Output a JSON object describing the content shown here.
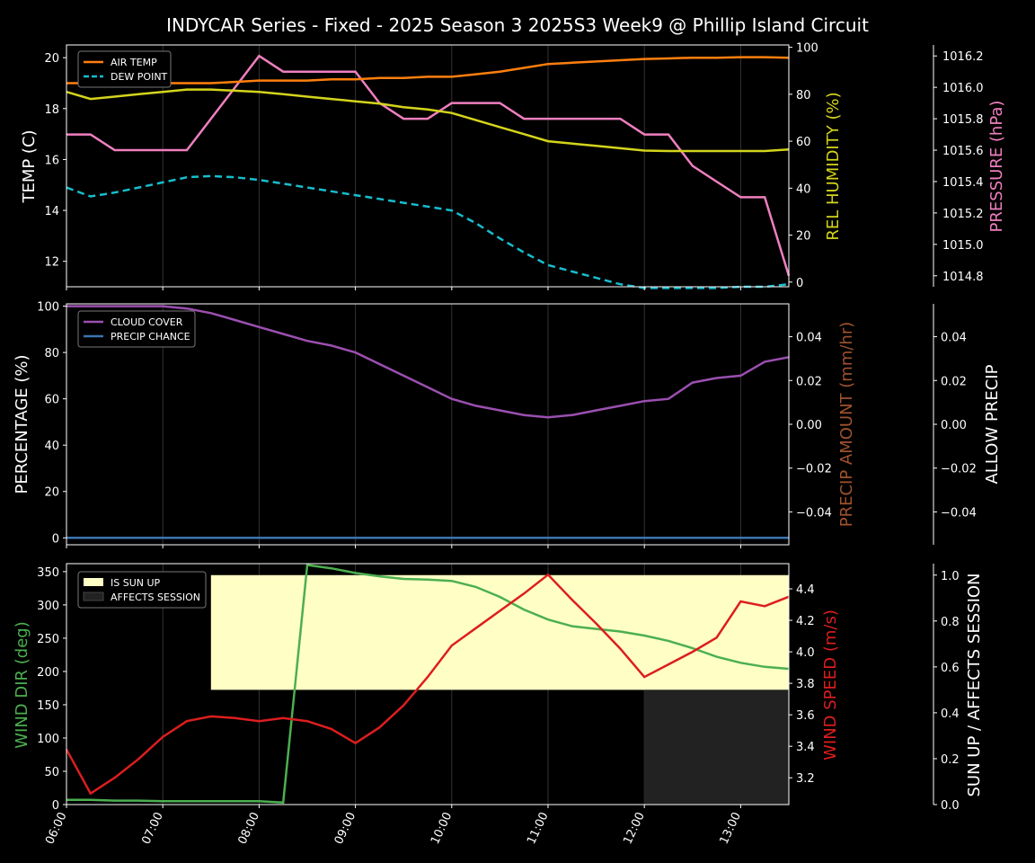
{
  "title": "INDYCAR Series - Fixed - 2025 Season 3 2025S3 Week9 @ Phillip Island Circuit",
  "x_tick_labels": [
    "06:00",
    "07:00",
    "08:00",
    "09:00",
    "10:00",
    "11:00",
    "12:00",
    "13:00"
  ],
  "colors": {
    "air_temp": "#ff7f0e",
    "dew_point": "#17becf",
    "rel_humidity": "#d4d41c",
    "pressure": "#ef7fbf",
    "cloud_cover": "#9b4fb0",
    "precip_chance": "#3a75b0",
    "precip_amount": "#a0522d",
    "wind_dir": "#4caf50",
    "wind_speed": "#dc1e1e",
    "sun_up": "#ffffc5",
    "affects_session": "#222222"
  },
  "chart_data": [
    {
      "type": "line",
      "ylabel": "TEMP (C)",
      "ylabel2": "REL HUMIDITY (%)",
      "ylabel3": "PRESSURE (hPa)",
      "ylim": [
        11.0,
        20.5
      ],
      "ylim2": [
        -2,
        101
      ],
      "ylim3": [
        1014.73,
        1016.27
      ],
      "yticks": [
        12,
        14,
        16,
        18,
        20
      ],
      "yticks2": [
        0,
        20,
        40,
        60,
        80,
        100
      ],
      "yticks3": [
        "1014.8",
        "1015.0",
        "1015.2",
        "1015.4",
        "1015.6",
        "1015.8",
        "1016.0",
        "1016.2"
      ],
      "legend": [
        "AIR TEMP",
        "DEW POINT"
      ],
      "legend_position": "top-left",
      "series": [
        {
          "name": "AIR TEMP",
          "axis": "left",
          "x": [
            6,
            6.25,
            6.5,
            6.75,
            7,
            7.25,
            7.5,
            7.75,
            8,
            8.25,
            8.5,
            8.75,
            9,
            9.25,
            9.5,
            9.75,
            10,
            10.25,
            10.5,
            10.75,
            11,
            11.25,
            11.5,
            11.75,
            12,
            12.25,
            12.5,
            12.75,
            13,
            13.25,
            13.5
          ],
          "values": [
            19.0,
            19.0,
            19.0,
            19.0,
            19.0,
            19.0,
            19.0,
            19.05,
            19.1,
            19.1,
            19.1,
            19.15,
            19.15,
            19.2,
            19.2,
            19.25,
            19.25,
            19.35,
            19.45,
            19.6,
            19.75,
            19.8,
            19.85,
            19.9,
            19.95,
            19.97,
            20.0,
            20.0,
            20.02,
            20.02,
            20.0
          ]
        },
        {
          "name": "DEW POINT",
          "axis": "left",
          "x": [
            6,
            6.25,
            6.5,
            6.75,
            7,
            7.25,
            7.5,
            7.75,
            8,
            8.25,
            8.5,
            8.75,
            9,
            9.25,
            9.5,
            9.75,
            10,
            10.25,
            10.5,
            10.75,
            11,
            11.25,
            11.5,
            11.75,
            12,
            12.25,
            12.5,
            12.75,
            13,
            13.25,
            13.5
          ],
          "values": [
            14.9,
            14.55,
            14.7,
            14.9,
            15.1,
            15.3,
            15.35,
            15.3,
            15.2,
            15.05,
            14.9,
            14.75,
            14.6,
            14.45,
            14.3,
            14.15,
            14.0,
            13.5,
            12.9,
            12.35,
            11.85,
            11.6,
            11.35,
            11.1,
            10.95,
            10.95,
            10.95,
            10.95,
            11.0,
            11.0,
            11.1
          ]
        },
        {
          "name": "",
          "axis": "right",
          "x": [
            6,
            6.25,
            6.5,
            6.75,
            7,
            7.25,
            7.5,
            7.75,
            8,
            8.25,
            8.5,
            8.75,
            9,
            9.25,
            9.5,
            9.75,
            10,
            10.25,
            10.5,
            10.75,
            11,
            11.25,
            11.5,
            11.75,
            12,
            12.25,
            12.5,
            12.75,
            13,
            13.25,
            13.5
          ],
          "values": [
            81,
            78,
            79,
            80,
            81,
            82,
            82,
            81.5,
            81,
            80,
            79,
            78,
            77,
            76,
            74.5,
            73.5,
            72,
            69,
            66,
            63,
            60,
            59,
            58,
            57,
            56,
            55.8,
            55.8,
            55.8,
            55.8,
            55.8,
            56.5
          ]
        },
        {
          "name": "",
          "axis": "right2",
          "x": [
            6,
            6.25,
            6.5,
            6.75,
            7,
            7.25,
            7.5,
            7.75,
            8,
            8.25,
            8.5,
            8.75,
            9,
            9.25,
            9.5,
            9.75,
            10,
            10.25,
            10.5,
            10.75,
            11,
            11.25,
            11.5,
            11.75,
            12,
            12.25,
            12.5,
            12.75,
            13,
            13.25,
            13.5
          ],
          "values": [
            1015.7,
            1015.7,
            1015.6,
            1015.6,
            1015.6,
            1015.6,
            1015.8,
            1016.0,
            1016.2,
            1016.1,
            1016.1,
            1016.1,
            1016.1,
            1015.9,
            1015.8,
            1015.8,
            1015.9,
            1015.9,
            1015.9,
            1015.8,
            1015.8,
            1015.8,
            1015.8,
            1015.8,
            1015.7,
            1015.7,
            1015.5,
            1015.4,
            1015.3,
            1015.3,
            1014.8
          ]
        }
      ]
    },
    {
      "type": "line",
      "ylabel": "PERCENTAGE (%)",
      "ylabel2": "PRECIP AMOUNT (mm/hr)",
      "ylabel3": "ALLOW PRECIP",
      "ylim": [
        -3,
        101
      ],
      "ylim2": [
        -0.055,
        0.055
      ],
      "yticks": [
        0,
        20,
        40,
        60,
        80,
        100
      ],
      "yticks2": [
        "−0.04",
        "−0.02",
        "0.00",
        "0.02",
        "0.04"
      ],
      "legend": [
        "CLOUD COVER",
        "PRECIP CHANCE"
      ],
      "legend_position": "top-left",
      "series": [
        {
          "name": "CLOUD COVER",
          "axis": "left",
          "x": [
            6,
            6.25,
            6.5,
            6.75,
            7,
            7.25,
            7.5,
            7.75,
            8,
            8.25,
            8.5,
            8.75,
            9,
            9.25,
            9.5,
            9.75,
            10,
            10.25,
            10.5,
            10.75,
            11,
            11.25,
            11.5,
            11.75,
            12,
            12.25,
            12.5,
            12.75,
            13,
            13.25,
            13.5
          ],
          "values": [
            100,
            100,
            100,
            100,
            100,
            99,
            97,
            94,
            91,
            88,
            85,
            83,
            80,
            75,
            70,
            65,
            60,
            57,
            55,
            53,
            52,
            53,
            55,
            57,
            59,
            60,
            67,
            69,
            70,
            76,
            78
          ]
        },
        {
          "name": "PRECIP CHANCE",
          "axis": "left",
          "x": [
            6,
            13.5
          ],
          "values": [
            0,
            0
          ]
        }
      ]
    },
    {
      "type": "line",
      "ylabel": "WIND DIR (deg)",
      "ylabel2": "WIND SPEED (m/s)",
      "ylabel3": "SUN UP / AFFECTS SESSION",
      "ylim": [
        0,
        362
      ],
      "ylim2": [
        3.03,
        4.56
      ],
      "ylim3": [
        0,
        1.05
      ],
      "yticks": [
        0,
        50,
        100,
        150,
        200,
        250,
        300,
        350
      ],
      "yticks2": [
        "3.2",
        "3.4",
        "3.6",
        "3.8",
        "4.0",
        "4.2",
        "4.4"
      ],
      "yticks3": [
        "0.0",
        "0.2",
        "0.4",
        "0.6",
        "0.8",
        "1.0"
      ],
      "legend": [
        "IS SUN UP",
        "AFFECTS SESSION"
      ],
      "legend_position": "top-left",
      "bands": [
        {
          "name": "IS SUN UP",
          "x0": 7.5,
          "x1": 13.5,
          "y0": 0.5,
          "y1": 1.0
        },
        {
          "name": "AFFECTS SESSION",
          "x0": 12.0,
          "x1": 13.5,
          "y0": 0.0,
          "y1": 0.5
        }
      ],
      "series": [
        {
          "name": "",
          "axis": "left",
          "x": [
            6,
            6.25,
            6.5,
            6.75,
            7,
            7.25,
            7.5,
            7.75,
            8,
            8.25,
            8.5,
            8.75,
            9,
            9.25,
            9.5,
            9.75,
            10,
            10.25,
            10.5,
            10.75,
            11,
            11.25,
            11.5,
            11.75,
            12,
            12.25,
            12.5,
            12.75,
            13,
            13.25,
            13.5
          ],
          "values": [
            7,
            7,
            6,
            6,
            5,
            5,
            5,
            5,
            5,
            3,
            360,
            355,
            348,
            343,
            339,
            338,
            336,
            327,
            312,
            293,
            278,
            268,
            264,
            260,
            254,
            246,
            235,
            222,
            213,
            207,
            204
          ]
        },
        {
          "name": "",
          "axis": "right",
          "x": [
            6,
            6.25,
            6.5,
            6.75,
            7,
            7.25,
            7.5,
            7.75,
            8,
            8.25,
            8.5,
            8.75,
            9,
            9.25,
            9.5,
            9.75,
            10,
            10.25,
            10.5,
            10.75,
            11,
            11.25,
            11.5,
            11.75,
            12,
            12.25,
            12.5,
            12.75,
            13,
            13.25,
            13.5
          ],
          "values": [
            3.38,
            3.1,
            3.2,
            3.32,
            3.46,
            3.56,
            3.59,
            3.58,
            3.56,
            3.58,
            3.56,
            3.51,
            3.42,
            3.52,
            3.66,
            3.84,
            4.04,
            4.15,
            4.26,
            4.37,
            4.49,
            4.33,
            4.18,
            4.02,
            3.84,
            3.92,
            4.0,
            4.09,
            4.32,
            4.29,
            4.35
          ]
        }
      ]
    }
  ]
}
